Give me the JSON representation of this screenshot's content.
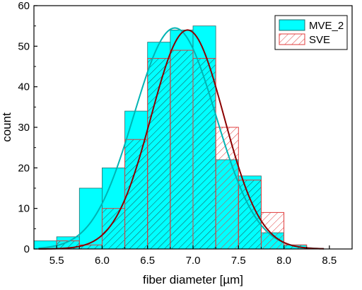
{
  "chart_data": {
    "type": "bar",
    "subtype": "overlaid histogram with normal-distribution fit curves",
    "xlabel": "fiber diameter [µm]",
    "ylabel": "count",
    "xlim": [
      5.25,
      8.75
    ],
    "ylim": [
      0,
      60
    ],
    "x_ticks": [
      "5.5",
      "6.0",
      "6.5",
      "7.0",
      "7.5",
      "8.0",
      "8.5"
    ],
    "y_ticks": [
      "0",
      "10",
      "20",
      "30",
      "40",
      "50",
      "60"
    ],
    "bin_width": 0.25,
    "bin_starts": [
      5.25,
      5.5,
      5.75,
      6.0,
      6.25,
      6.5,
      6.75,
      7.0,
      7.25,
      7.5,
      7.75,
      8.0,
      8.25
    ],
    "series": [
      {
        "name": "MVE_2",
        "style": "solid fill",
        "fill_color": "#00ffff",
        "curve_color": "#00b4b4",
        "counts": [
          2,
          3,
          15,
          20,
          34,
          51,
          54,
          55,
          22,
          18,
          4,
          1,
          0
        ],
        "fit_mean": 6.8,
        "fit_sd": 0.45,
        "fit_peak": 54.5
      },
      {
        "name": "SVE",
        "style": "hatched",
        "hatch_color": "#e03c3c",
        "curve_color": "#8b0000",
        "counts": [
          0,
          2,
          1,
          10,
          27,
          47,
          49,
          47,
          30,
          17,
          9,
          1,
          0
        ],
        "fit_mean": 6.94,
        "fit_sd": 0.4,
        "fit_peak": 54
      }
    ],
    "legend": {
      "position": "top-right",
      "entries": [
        "MVE_2",
        "SVE"
      ]
    },
    "grid": false
  }
}
